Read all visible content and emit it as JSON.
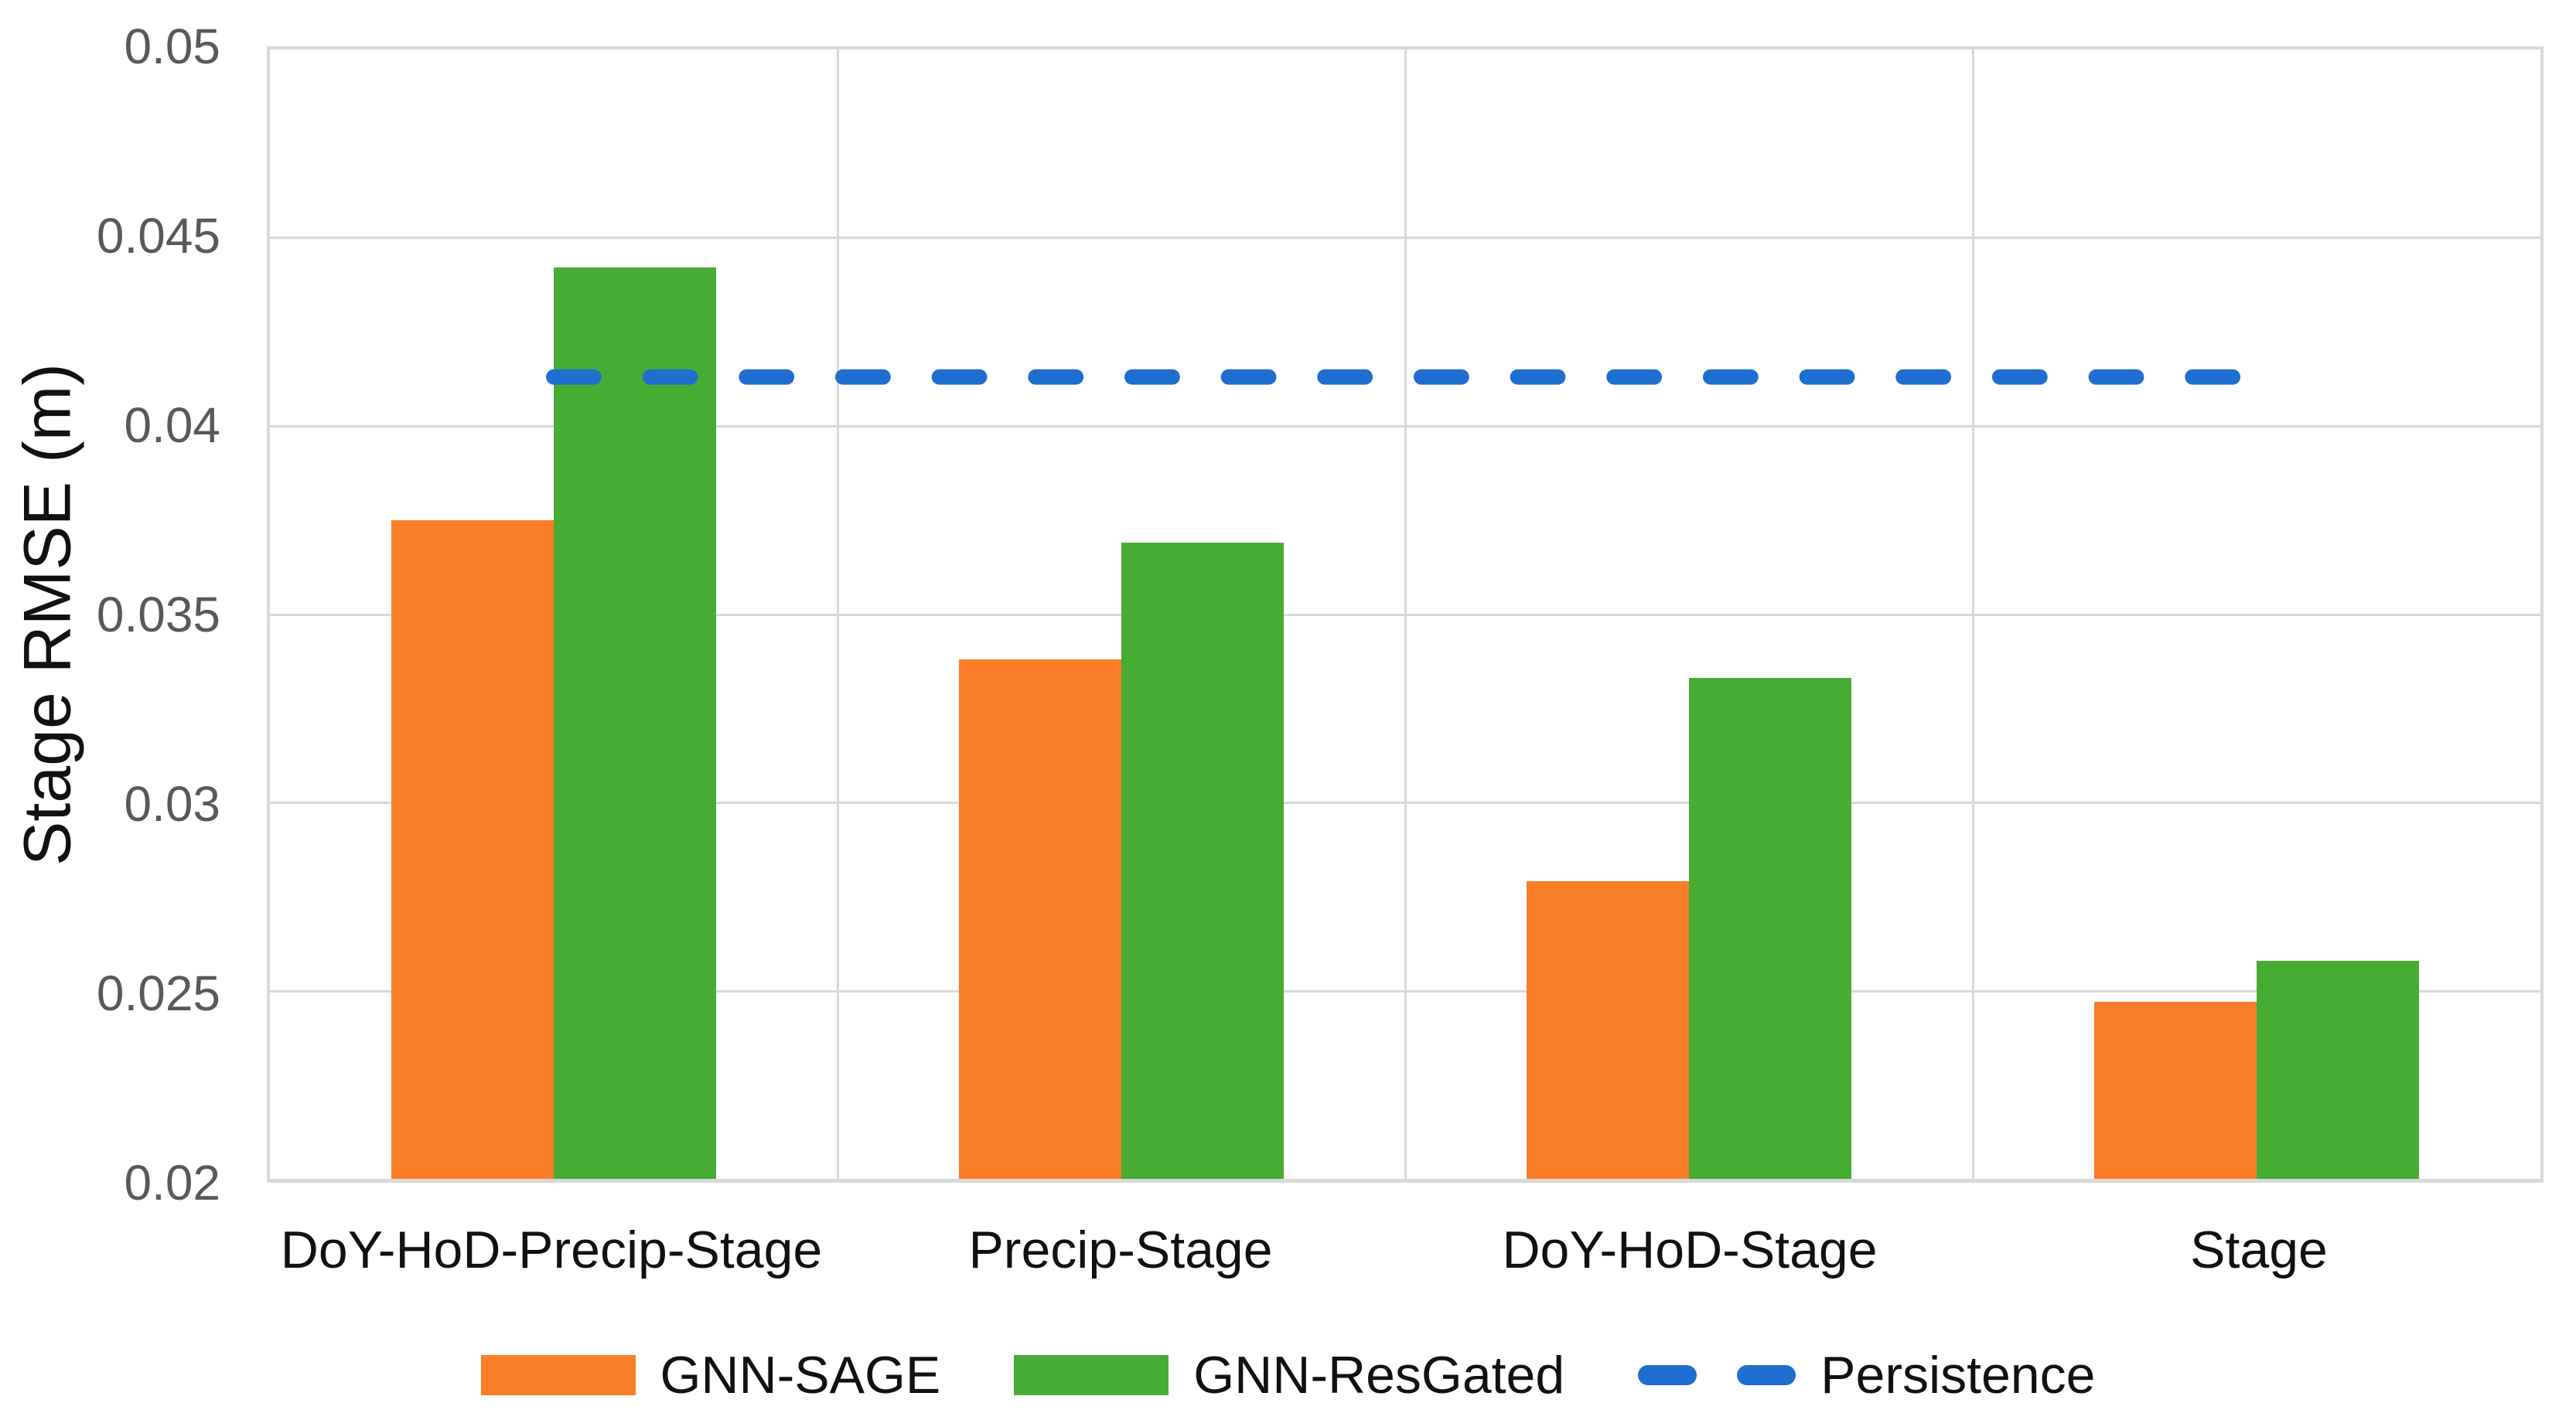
{
  "chart_data": {
    "type": "bar",
    "title": "",
    "xlabel": "",
    "ylabel": "Stage RMSE (m)",
    "categories": [
      "DoY-HoD-Precip-Stage",
      "Precip-Stage",
      "DoY-HoD-Stage",
      "Stage"
    ],
    "series": [
      {
        "name": "GNN-SAGE",
        "color": "#F97E27",
        "values": [
          0.0375,
          0.0338,
          0.0279,
          0.0247
        ]
      },
      {
        "name": "GNN-ResGated",
        "color": "#47AC34",
        "values": [
          0.0442,
          0.0369,
          0.0333,
          0.0258
        ]
      }
    ],
    "persistence": {
      "name": "Persistence",
      "color": "#1E6FD0",
      "value": 0.0413,
      "style": "dashed"
    },
    "ylim": [
      0.02,
      0.05
    ],
    "ytick_step": 0.005,
    "grid": true,
    "legend_position": "bottom"
  },
  "colors": {
    "gridline": "#D9D9D9",
    "tick_text": "#595959",
    "label_text": "#111111",
    "background": "#FFFFFF"
  }
}
